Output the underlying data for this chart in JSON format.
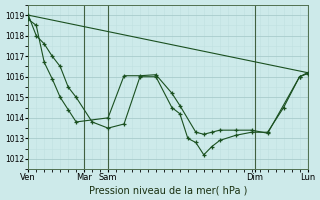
{
  "background_color": "#cdeaea",
  "grid_color_major": "#a8cccc",
  "grid_color_minor": "#c0e0e0",
  "line_color": "#1a5020",
  "xlabel": "Pression niveau de la mer( hPa )",
  "ylim": [
    1011.5,
    1019.5
  ],
  "yticks": [
    1012,
    1013,
    1014,
    1015,
    1016,
    1017,
    1018,
    1019
  ],
  "series1_x": [
    0,
    0.5,
    1.0,
    1.5,
    2.0,
    2.5,
    3.0,
    4.0,
    5.0,
    6.0,
    7.0,
    8.0,
    9.0,
    9.5,
    10.0,
    10.5,
    11.0,
    11.5,
    12.0,
    13.0,
    14.0,
    15.0,
    16.0,
    17.0,
    17.5
  ],
  "series1_y": [
    1019.0,
    1018.0,
    1017.6,
    1017.0,
    1016.5,
    1015.5,
    1015.0,
    1013.8,
    1013.5,
    1013.7,
    1016.0,
    1016.0,
    1014.5,
    1014.2,
    1013.0,
    1012.8,
    1012.2,
    1012.6,
    1012.9,
    1013.15,
    1013.3,
    1013.3,
    1014.5,
    1016.0,
    1016.15
  ],
  "series2_x": [
    0,
    0.5,
    1.0,
    1.5,
    2.0,
    2.5,
    3.0,
    5.0,
    6.0,
    7.0,
    8.0,
    9.0,
    9.5,
    10.5,
    11.0,
    11.5,
    12.0,
    13.0,
    14.0,
    15.0,
    17.0,
    17.5
  ],
  "series2_y": [
    1018.8,
    1018.5,
    1016.7,
    1015.9,
    1015.0,
    1014.4,
    1013.8,
    1014.0,
    1016.05,
    1016.05,
    1016.1,
    1015.2,
    1014.6,
    1013.3,
    1013.2,
    1013.3,
    1013.4,
    1013.4,
    1013.4,
    1013.25,
    1016.0,
    1016.2
  ],
  "series3_x": [
    0,
    17.5
  ],
  "series3_y": [
    1019.0,
    1016.2
  ],
  "x_vline_positions": [
    3.5,
    5.0,
    14.2,
    17.5
  ],
  "xtick_positions": [
    0,
    3.5,
    5.0,
    14.2,
    17.5
  ],
  "xtick_labels": [
    "Ven",
    "Mar",
    "Sam",
    "Dim",
    "Lun"
  ],
  "ylabel_fontsize": 5.5,
  "xlabel_fontsize": 7,
  "title_color": "#1a3010"
}
